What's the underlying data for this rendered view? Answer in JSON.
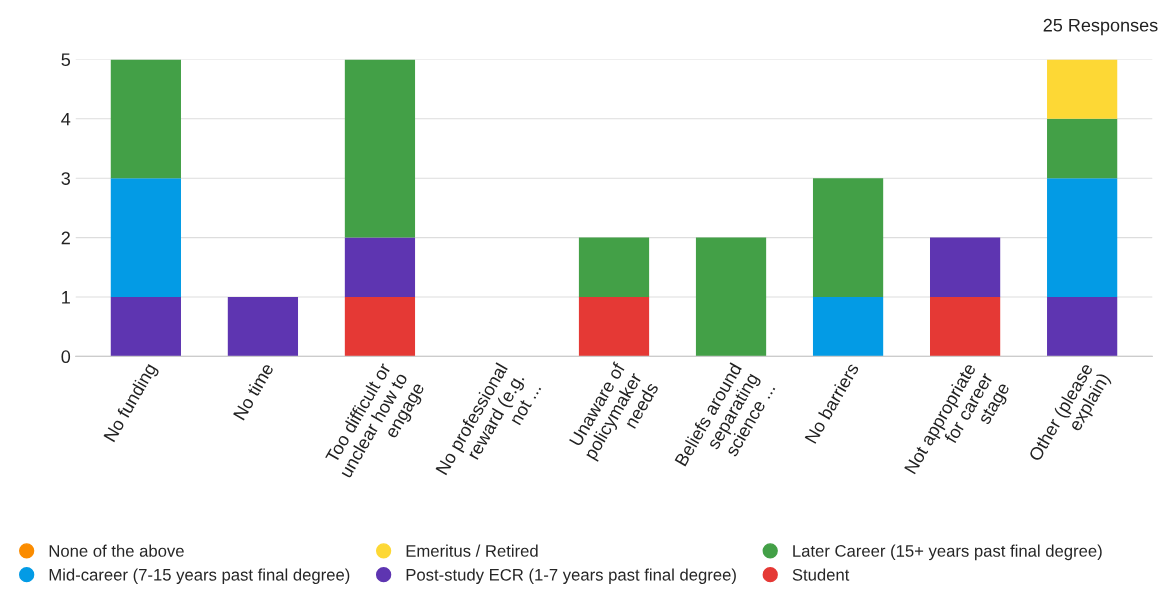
{
  "chart_data": {
    "type": "bar",
    "stacked": true,
    "categories": [
      "No funding",
      "No time",
      "Too difficult or\nunclear how to\nengage",
      "No professional\nreward (e.g.\nnot ...",
      "Unaware of\npolicymaker\nneeds",
      "Beliefs around\nseparating\nscience ...",
      "No barriers",
      "Not appropriate\nfor career\nstage",
      "Other (please\nexplain)"
    ],
    "series": [
      {
        "name": "Student",
        "color": "#e53935",
        "values": [
          0,
          0,
          1,
          0,
          1,
          0,
          0,
          1,
          0
        ]
      },
      {
        "name": "Post-study ECR (1-7 years past final degree)",
        "color": "#5e35b1",
        "values": [
          1,
          1,
          1,
          0,
          0,
          0,
          0,
          1,
          1
        ]
      },
      {
        "name": "Mid-career (7-15 years past final degree)",
        "color": "#039be5",
        "values": [
          2,
          0,
          0,
          0,
          0,
          0,
          1,
          0,
          2
        ]
      },
      {
        "name": "Later Career (15+ years past final degree)",
        "color": "#43a047",
        "values": [
          2,
          0,
          3,
          0,
          1,
          2,
          2,
          0,
          1
        ]
      },
      {
        "name": "Emeritus / Retired",
        "color": "#fdd835",
        "values": [
          0,
          0,
          0,
          0,
          0,
          0,
          0,
          0,
          1
        ]
      },
      {
        "name": "None of the above",
        "color": "#fb8c00",
        "values": [
          0,
          0,
          0,
          0,
          0,
          0,
          0,
          0,
          0
        ]
      }
    ],
    "ylim": [
      0,
      5
    ],
    "yticks": [
      0,
      1,
      2,
      3,
      4,
      5
    ],
    "grid": "y",
    "legend": "bottom",
    "annotations": [
      "25 Responses"
    ]
  }
}
